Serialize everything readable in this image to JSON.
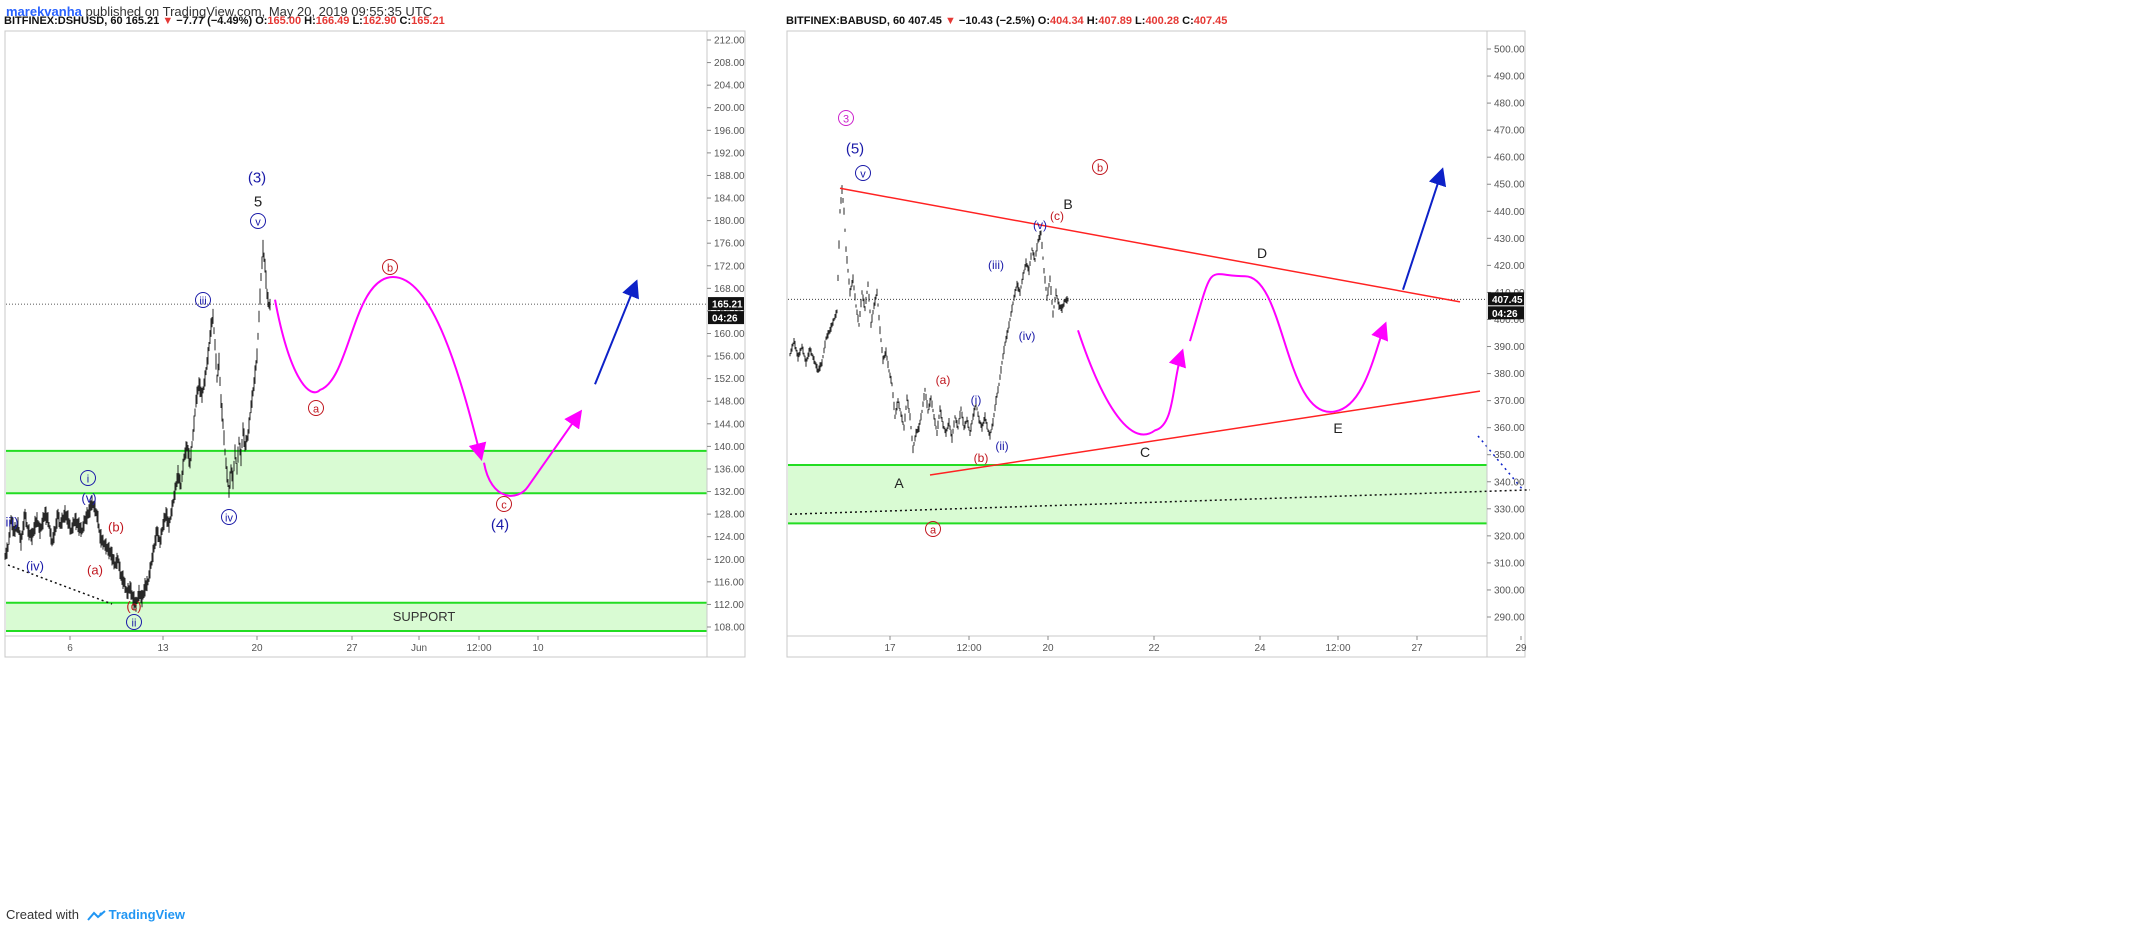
{
  "header": {
    "author": "marekvanha",
    "published_text": " published on TradingView.com, May 20, 2019 09:55:35 UTC"
  },
  "footer": {
    "created_with": "Created with",
    "brand": "TradingView"
  },
  "colors": {
    "bull_zone": "#d9fbd3",
    "zone_line": "#22dd22",
    "wave_path": "#ff00ff",
    "target_arrow": "#0d21c8",
    "trendline": "#ff2222",
    "label_red": "#c0161e",
    "label_blue": "#1a1aa8",
    "label_magenta": "#cc22cc",
    "down": "#e53935"
  },
  "charts": [
    {
      "symbol": "BITFINEX:DSHUSD, 60",
      "last": "165.21",
      "change": "−7.77 (−4.49%)",
      "ohlc": {
        "o": "165.00",
        "h": "166.49",
        "l": "162.90",
        "c": "165.21"
      },
      "price_tag": "165.21",
      "countdown": "04:26",
      "y_ticks": [
        "212.00",
        "208.00",
        "204.00",
        "200.00",
        "196.00",
        "192.00",
        "188.00",
        "184.00",
        "180.00",
        "176.00",
        "172.00",
        "168.00",
        "164.00",
        "160.00",
        "156.00",
        "152.00",
        "148.00",
        "144.00",
        "140.00",
        "136.00",
        "132.00",
        "128.00",
        "124.00",
        "120.00",
        "116.00",
        "112.00",
        "108.00"
      ],
      "x_ticks": [
        "6",
        "13",
        "20",
        "27",
        "Jun",
        "12:00",
        "10"
      ],
      "zone_label": "SUPPORT",
      "wave_labels": [
        {
          "text": "(3)",
          "color": "blue"
        },
        {
          "text": "5",
          "color": "black"
        },
        {
          "text": "v",
          "color": "blue",
          "circle": true
        },
        {
          "text": "iii",
          "color": "blue",
          "circle": true
        },
        {
          "text": "iv",
          "color": "blue",
          "circle": true
        },
        {
          "text": "i",
          "color": "blue",
          "circle": true
        },
        {
          "text": "ii",
          "color": "blue",
          "circle": true
        },
        {
          "text": "(v)",
          "color": "blue"
        },
        {
          "text": "(iv)",
          "color": "blue"
        },
        {
          "text": "iii)",
          "color": "blue"
        },
        {
          "text": "(b)",
          "color": "red"
        },
        {
          "text": "(a)",
          "color": "red"
        },
        {
          "text": "(c)",
          "color": "red"
        },
        {
          "text": "b",
          "color": "red",
          "circle": true
        },
        {
          "text": "a",
          "color": "red",
          "circle": true
        },
        {
          "text": "c",
          "color": "red",
          "circle": true
        },
        {
          "text": "(4)",
          "color": "blue"
        }
      ],
      "chart_data": {
        "type": "candlestick-ohlc",
        "timeframe": "60",
        "ylim": [
          106,
          214
        ],
        "grid": false,
        "last_price": 165.21,
        "support_zones": [
          [
            131.7,
            139.2
          ],
          [
            107.3,
            112.3
          ]
        ],
        "price_path": [
          [
            0,
            120.5
          ],
          [
            3,
            122
          ],
          [
            6,
            127
          ],
          [
            9,
            125
          ],
          [
            13,
            126
          ],
          [
            16,
            123
          ],
          [
            20,
            128
          ],
          [
            23,
            125
          ],
          [
            27,
            124
          ],
          [
            30,
            126
          ],
          [
            32,
            127
          ],
          [
            35,
            125
          ],
          [
            40,
            128
          ],
          [
            43,
            127
          ],
          [
            47,
            123
          ],
          [
            50,
            125
          ],
          [
            53,
            128
          ],
          [
            55,
            126
          ],
          [
            60,
            128
          ],
          [
            63,
            127
          ],
          [
            66,
            125
          ],
          [
            70,
            127
          ],
          [
            73,
            126
          ],
          [
            77,
            125
          ],
          [
            80,
            127
          ],
          [
            83,
            128
          ],
          [
            87,
            130
          ],
          [
            90,
            129
          ],
          [
            93,
            127
          ],
          [
            95,
            124
          ],
          [
            98,
            123
          ],
          [
            102,
            122
          ],
          [
            106,
            121
          ],
          [
            110,
            119
          ],
          [
            113,
            120
          ],
          [
            116,
            117
          ],
          [
            119,
            116
          ],
          [
            122,
            114
          ],
          [
            125,
            115
          ],
          [
            128,
            113
          ],
          [
            131,
            112
          ],
          [
            134,
            114
          ],
          [
            137,
            113
          ],
          [
            140,
            115
          ],
          [
            143,
            116
          ],
          [
            146,
            119
          ],
          [
            149,
            122
          ],
          [
            152,
            125
          ],
          [
            155,
            123
          ],
          [
            158,
            126
          ],
          [
            161,
            128
          ],
          [
            164,
            126
          ],
          [
            167,
            129
          ],
          [
            170,
            132
          ],
          [
            173,
            135
          ],
          [
            176,
            133
          ],
          [
            179,
            138
          ],
          [
            182,
            140
          ],
          [
            185,
            137
          ],
          [
            188,
            142
          ],
          [
            191,
            148
          ],
          [
            194,
            151
          ],
          [
            197,
            149
          ],
          [
            200,
            152
          ],
          [
            203,
            156
          ],
          [
            206,
            161
          ],
          [
            208,
            163
          ],
          [
            210,
            158
          ],
          [
            212,
            152
          ],
          [
            214,
            155
          ],
          [
            216,
            148
          ],
          [
            218,
            144
          ],
          [
            220,
            139
          ],
          [
            222,
            135
          ],
          [
            224,
            132
          ],
          [
            226,
            136
          ],
          [
            228,
            134
          ],
          [
            230,
            139
          ],
          [
            232,
            136
          ],
          [
            234,
            141
          ],
          [
            236,
            138
          ],
          [
            238,
            143
          ],
          [
            240,
            140
          ],
          [
            243,
            142
          ],
          [
            246,
            147
          ],
          [
            249,
            151
          ],
          [
            252,
            156
          ],
          [
            254,
            163
          ],
          [
            256,
            170
          ],
          [
            258,
            175
          ],
          [
            260,
            172
          ],
          [
            262,
            167
          ],
          [
            264,
            165
          ],
          [
            266,
            165.2
          ]
        ],
        "annotations": {
          "wave_path_points": [
            [
              270,
              166
            ],
            [
              315,
              150
            ],
            [
              388,
              170
            ],
            [
              476,
              138
            ],
            [
              503,
              132
            ],
            [
              575,
              146
            ]
          ],
          "target_arrow": [
            [
              590,
              151
            ],
            [
              631,
              169
            ]
          ]
        }
      }
    },
    {
      "symbol": "BITFINEX:BABUSD, 60",
      "last": "407.45",
      "change": "−10.43 (−2.5%)",
      "ohlc": {
        "o": "404.34",
        "h": "407.89",
        "l": "400.28",
        "c": "407.45"
      },
      "price_tag": "407.45",
      "countdown": "04:26",
      "y_ticks": [
        "500.00",
        "490.00",
        "480.00",
        "470.00",
        "460.00",
        "450.00",
        "440.00",
        "430.00",
        "420.00",
        "410.00",
        "400.00",
        "390.00",
        "380.00",
        "370.00",
        "360.00",
        "350.00",
        "340.00",
        "330.00",
        "320.00",
        "310.00",
        "300.00",
        "290.00"
      ],
      "x_ticks": [
        "17",
        "12:00",
        "20",
        "22",
        "24",
        "12:00",
        "27",
        "29"
      ],
      "wave_labels": [
        {
          "text": "3",
          "color": "magenta",
          "circle": true
        },
        {
          "text": "(5)",
          "color": "blue"
        },
        {
          "text": "v",
          "color": "blue",
          "circle": true
        },
        {
          "text": "b",
          "color": "red",
          "circle": true
        },
        {
          "text": "B",
          "color": "black"
        },
        {
          "text": "(c)",
          "color": "red"
        },
        {
          "text": "(v)",
          "color": "blue"
        },
        {
          "text": "(iii)",
          "color": "blue"
        },
        {
          "text": "(iv)",
          "color": "blue"
        },
        {
          "text": "(a)",
          "color": "red"
        },
        {
          "text": "(i)",
          "color": "blue"
        },
        {
          "text": "(ii)",
          "color": "blue"
        },
        {
          "text": "(b)",
          "color": "red"
        },
        {
          "text": "A",
          "color": "black"
        },
        {
          "text": "a",
          "color": "red",
          "circle": true
        },
        {
          "text": "C",
          "color": "black"
        },
        {
          "text": "D",
          "color": "black"
        },
        {
          "text": "E",
          "color": "black"
        }
      ],
      "chart_data": {
        "type": "candlestick-ohlc",
        "timeframe": "60",
        "ylim": [
          283,
          504
        ],
        "grid": false,
        "last_price": 407.45,
        "support_zones": [
          [
            324.6,
            346.2
          ]
        ],
        "price_path": [
          [
            0,
            387
          ],
          [
            4,
            392
          ],
          [
            8,
            386
          ],
          [
            12,
            390
          ],
          [
            16,
            384
          ],
          [
            20,
            389
          ],
          [
            24,
            385
          ],
          [
            28,
            381
          ],
          [
            32,
            384
          ],
          [
            36,
            393
          ],
          [
            40,
            396
          ],
          [
            43,
            399
          ],
          [
            47,
            403
          ],
          [
            50,
            440
          ],
          [
            52,
            448
          ],
          [
            54,
            440
          ],
          [
            56,
            426
          ],
          [
            58,
            418
          ],
          [
            60,
            410
          ],
          [
            63,
            415
          ],
          [
            66,
            405
          ],
          [
            69,
            398
          ],
          [
            72,
            410
          ],
          [
            75,
            404
          ],
          [
            78,
            413
          ],
          [
            81,
            398
          ],
          [
            84,
            405
          ],
          [
            87,
            410
          ],
          [
            90,
            396
          ],
          [
            93,
            385
          ],
          [
            96,
            388
          ],
          [
            99,
            381
          ],
          [
            102,
            376
          ],
          [
            105,
            364
          ],
          [
            108,
            370
          ],
          [
            111,
            365
          ],
          [
            114,
            360
          ],
          [
            117,
            371
          ],
          [
            120,
            364
          ],
          [
            123,
            352
          ],
          [
            126,
            358
          ],
          [
            129,
            360
          ],
          [
            132,
            366
          ],
          [
            135,
            374
          ],
          [
            138,
            366
          ],
          [
            141,
            371
          ],
          [
            144,
            364
          ],
          [
            147,
            358
          ],
          [
            150,
            367
          ],
          [
            153,
            361
          ],
          [
            156,
            358
          ],
          [
            159,
            362
          ],
          [
            162,
            356
          ],
          [
            165,
            364
          ],
          [
            168,
            360
          ],
          [
            171,
            367
          ],
          [
            174,
            360
          ],
          [
            177,
            363
          ],
          [
            180,
            358
          ],
          [
            183,
            364
          ],
          [
            186,
            369
          ],
          [
            189,
            363
          ],
          [
            192,
            360
          ],
          [
            195,
            364
          ],
          [
            198,
            359
          ],
          [
            200,
            357
          ],
          [
            203,
            362
          ],
          [
            206,
            370
          ],
          [
            209,
            376
          ],
          [
            212,
            384
          ],
          [
            215,
            391
          ],
          [
            218,
            396
          ],
          [
            221,
            402
          ],
          [
            224,
            408
          ],
          [
            227,
            413
          ],
          [
            230,
            410
          ],
          [
            233,
            416
          ],
          [
            236,
            421
          ],
          [
            239,
            418
          ],
          [
            242,
            426
          ],
          [
            245,
            422
          ],
          [
            248,
            429
          ],
          [
            251,
            432
          ],
          [
            254,
            418
          ],
          [
            257,
            408
          ],
          [
            260,
            415
          ],
          [
            263,
            402
          ],
          [
            266,
            410
          ],
          [
            269,
            405
          ],
          [
            272,
            404
          ],
          [
            275,
            407
          ],
          [
            279,
            407.45
          ]
        ],
        "annotations": {
          "upper_trendline": [
            [
              50,
              448.5
            ],
            [
              670,
              406.5
            ]
          ],
          "lower_trendline": [
            [
              140,
              342.5
            ],
            [
              690,
              373.5
            ]
          ],
          "dotted_trendline": [
            [
              0,
              328
            ],
            [
              740,
              337
            ]
          ],
          "wave_path_points": [
            [
              288,
              396
            ],
            [
              365,
              359
            ],
            [
              392,
              388
            ],
            [
              400,
              392
            ],
            [
              455,
              416
            ],
            [
              545,
              366
            ],
            [
              595,
              398
            ]
          ],
          "target_arrow": [
            [
              613,
              411
            ],
            [
              652,
              455
            ]
          ]
        }
      }
    }
  ]
}
